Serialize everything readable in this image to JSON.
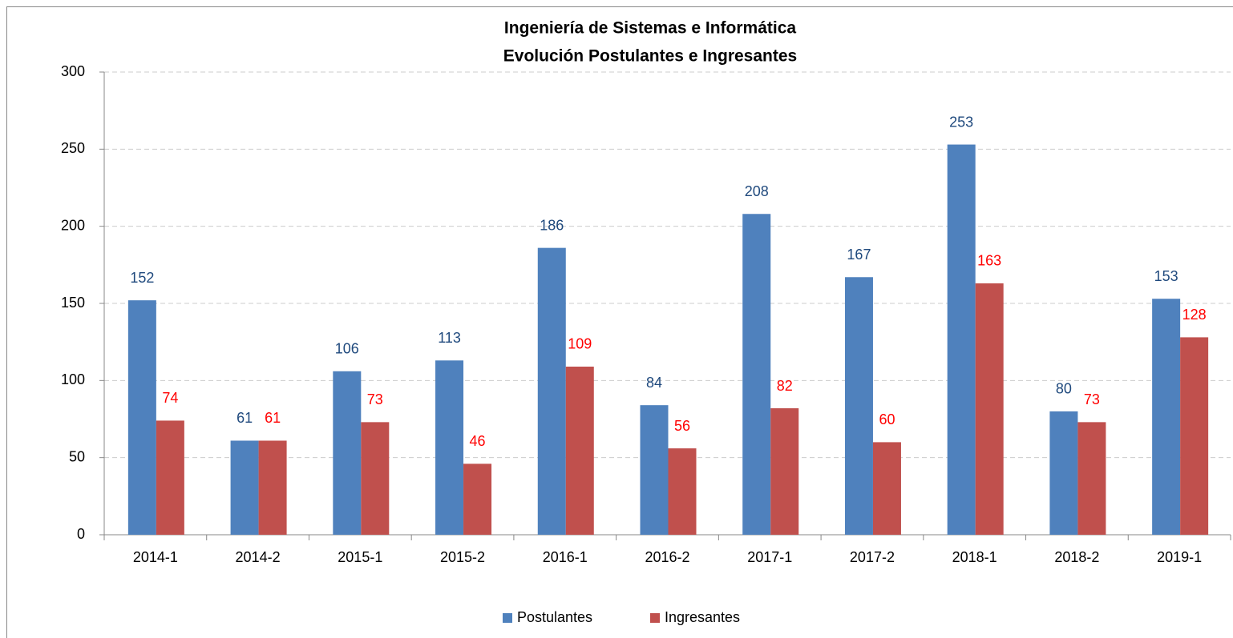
{
  "chart_data": {
    "type": "bar",
    "title": "Ingeniería de Sistemas e Informática",
    "subtitle": "Evolución Postulantes e Ingresantes",
    "categories": [
      "2014-1",
      "2014-2",
      "2015-1",
      "2015-2",
      "2016-1",
      "2016-2",
      "2017-1",
      "2017-2",
      "2018-1",
      "2018-2",
      "2019-1"
    ],
    "series": [
      {
        "name": "Postulantes",
        "color": "#4f81bd",
        "label_color": "#1f497d",
        "values": [
          152,
          61,
          106,
          113,
          186,
          84,
          208,
          167,
          253,
          80,
          153
        ]
      },
      {
        "name": "Ingresantes",
        "color": "#c0504d",
        "label_color": "#ff0000",
        "values": [
          74,
          61,
          73,
          46,
          109,
          56,
          82,
          60,
          163,
          73,
          128
        ]
      }
    ],
    "ylim": [
      0,
      300
    ],
    "yticks": [
      0,
      50,
      100,
      150,
      200,
      250,
      300
    ],
    "grid": true,
    "legend": "bottom"
  }
}
